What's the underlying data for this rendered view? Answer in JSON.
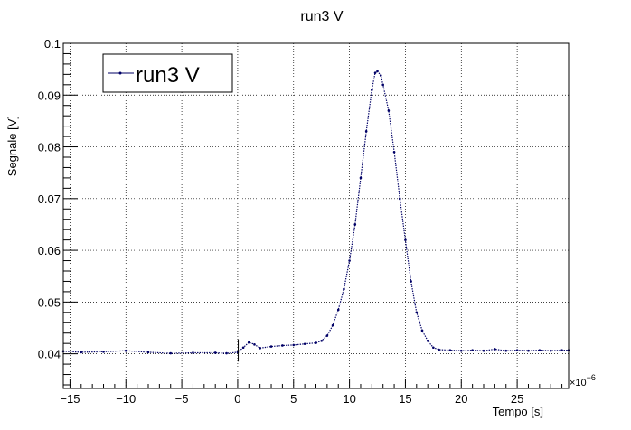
{
  "chart_data": {
    "type": "scatter",
    "title": "run3 V",
    "xlabel": "Tempo [s]",
    "ylabel": "Segnale [V]",
    "x_multiplier_label": "×10",
    "x_multiplier_exponent": "−6",
    "xlim": [
      -15.6,
      29.6
    ],
    "ylim": [
      0.0333,
      0.1
    ],
    "x_ticks": [
      -15,
      -10,
      -5,
      0,
      5,
      10,
      15,
      20,
      25
    ],
    "x_tick_labels": [
      "−15",
      "−10",
      "−5",
      "0",
      "5",
      "10",
      "15",
      "20",
      "25"
    ],
    "y_ticks": [
      0.04,
      0.05,
      0.06,
      0.07,
      0.08,
      0.09,
      0.1
    ],
    "y_tick_labels": [
      "0.04",
      "0.05",
      "0.06",
      "0.07",
      "0.08",
      "0.09",
      "0.1"
    ],
    "grid": true,
    "legend_position": "top-left",
    "series": [
      {
        "name": "run3 V",
        "color": "#000066",
        "points": [
          [
            -15.6,
            0.0405
          ],
          [
            -14,
            0.0403
          ],
          [
            -12,
            0.0404
          ],
          [
            -10,
            0.0406
          ],
          [
            -8,
            0.0403
          ],
          [
            -6,
            0.0401
          ],
          [
            -4,
            0.0402
          ],
          [
            -2,
            0.0402
          ],
          [
            -1,
            0.0401
          ],
          [
            0,
            0.0403
          ],
          [
            0.5,
            0.0412
          ],
          [
            1,
            0.0422
          ],
          [
            1.5,
            0.0418
          ],
          [
            2,
            0.0411
          ],
          [
            3,
            0.0414
          ],
          [
            4,
            0.0416
          ],
          [
            5,
            0.0417
          ],
          [
            6,
            0.0419
          ],
          [
            7,
            0.0421
          ],
          [
            7.5,
            0.0425
          ],
          [
            8,
            0.0435
          ],
          [
            8.5,
            0.0455
          ],
          [
            9,
            0.0485
          ],
          [
            9.5,
            0.0525
          ],
          [
            10,
            0.058
          ],
          [
            10.5,
            0.065
          ],
          [
            11,
            0.074
          ],
          [
            11.5,
            0.083
          ],
          [
            12,
            0.091
          ],
          [
            12.3,
            0.0943
          ],
          [
            12.5,
            0.0946
          ],
          [
            12.8,
            0.0938
          ],
          [
            13,
            0.092
          ],
          [
            13.5,
            0.087
          ],
          [
            14,
            0.079
          ],
          [
            14.5,
            0.07
          ],
          [
            15,
            0.062
          ],
          [
            15.5,
            0.054
          ],
          [
            16,
            0.048
          ],
          [
            16.5,
            0.0445
          ],
          [
            17,
            0.0425
          ],
          [
            17.5,
            0.0412
          ],
          [
            18,
            0.0408
          ],
          [
            19,
            0.0407
          ],
          [
            20,
            0.0406
          ],
          [
            21,
            0.0407
          ],
          [
            22,
            0.0406
          ],
          [
            23,
            0.0409
          ],
          [
            24,
            0.0406
          ],
          [
            25,
            0.0407
          ],
          [
            26,
            0.0406
          ],
          [
            27,
            0.0407
          ],
          [
            28,
            0.0406
          ],
          [
            29,
            0.0407
          ],
          [
            29.6,
            0.0407
          ]
        ]
      }
    ]
  }
}
